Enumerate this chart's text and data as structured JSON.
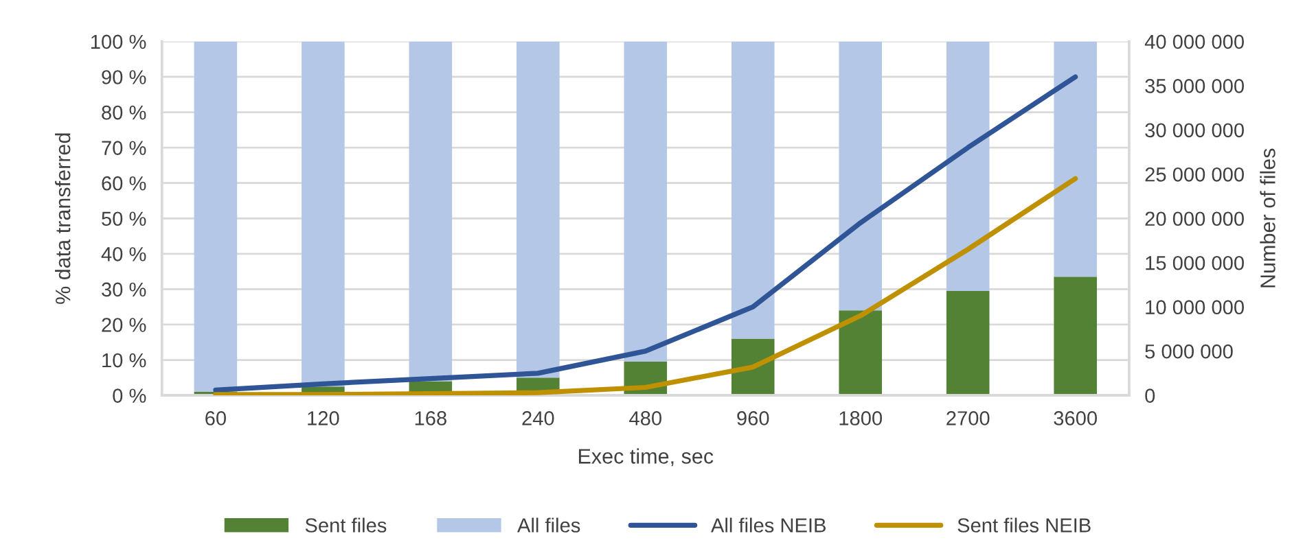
{
  "chart_data": {
    "type": "bar",
    "stacked": true,
    "xlabel": "Exec time, sec",
    "ylabel": "% data transferred",
    "y2label": "Number of files",
    "categories": [
      "60",
      "120",
      "168",
      "240",
      "480",
      "960",
      "1800",
      "2700",
      "3600"
    ],
    "series": [
      {
        "name": "Sent files",
        "color": "#548235",
        "values": [
          1,
          2.5,
          4,
          5,
          9.5,
          16,
          24,
          29.5,
          33.5
        ]
      },
      {
        "name": "All files",
        "color": "#b4c7e7",
        "values": [
          99,
          97.5,
          96,
          95,
          90.5,
          84,
          76,
          70.5,
          66.5
        ]
      },
      {
        "name": "All files NEIB",
        "type": "line",
        "axis": "y2",
        "color": "#2f5597",
        "values": [
          600000,
          1300000,
          1900000,
          2500000,
          5000000,
          10000000,
          19500000,
          28000000,
          36000000
        ]
      },
      {
        "name": "Sent files NEIB",
        "type": "line",
        "axis": "y2",
        "color": "#bf9000",
        "values": [
          100000,
          100000,
          200000,
          300000,
          900000,
          3200000,
          9000000,
          16500000,
          24500000
        ]
      }
    ],
    "ylim": [
      0,
      100
    ],
    "yticks": [
      {
        "value": 0,
        "label": "0 %"
      },
      {
        "value": 10,
        "label": "10 %"
      },
      {
        "value": 20,
        "label": "20 %"
      },
      {
        "value": 30,
        "label": "30 %"
      },
      {
        "value": 40,
        "label": "40 %"
      },
      {
        "value": 50,
        "label": "50 %"
      },
      {
        "value": 60,
        "label": "60 %"
      },
      {
        "value": 70,
        "label": "70 %"
      },
      {
        "value": 80,
        "label": "80 %"
      },
      {
        "value": 90,
        "label": "90 %"
      },
      {
        "value": 100,
        "label": "100 %"
      }
    ],
    "y2lim": [
      0,
      40000000
    ],
    "y2ticks": [
      0,
      {
        "value": 5000000,
        "label": "5 000 000"
      },
      {
        "value": 10000000,
        "label": "10 000 000"
      },
      {
        "value": 15000000,
        "label": "15 000 000"
      },
      {
        "value": 20000000,
        "label": "20 000 000"
      },
      {
        "value": 25000000,
        "label": "25 000 000"
      },
      {
        "value": 30000000,
        "label": "30 000 000"
      },
      {
        "value": 35000000,
        "label": "35 000 000"
      },
      {
        "value": 40000000,
        "label": "40 000 000"
      }
    ],
    "grid": "y",
    "legend": "bottom",
    "marker": "none",
    "line_style": "solid"
  }
}
